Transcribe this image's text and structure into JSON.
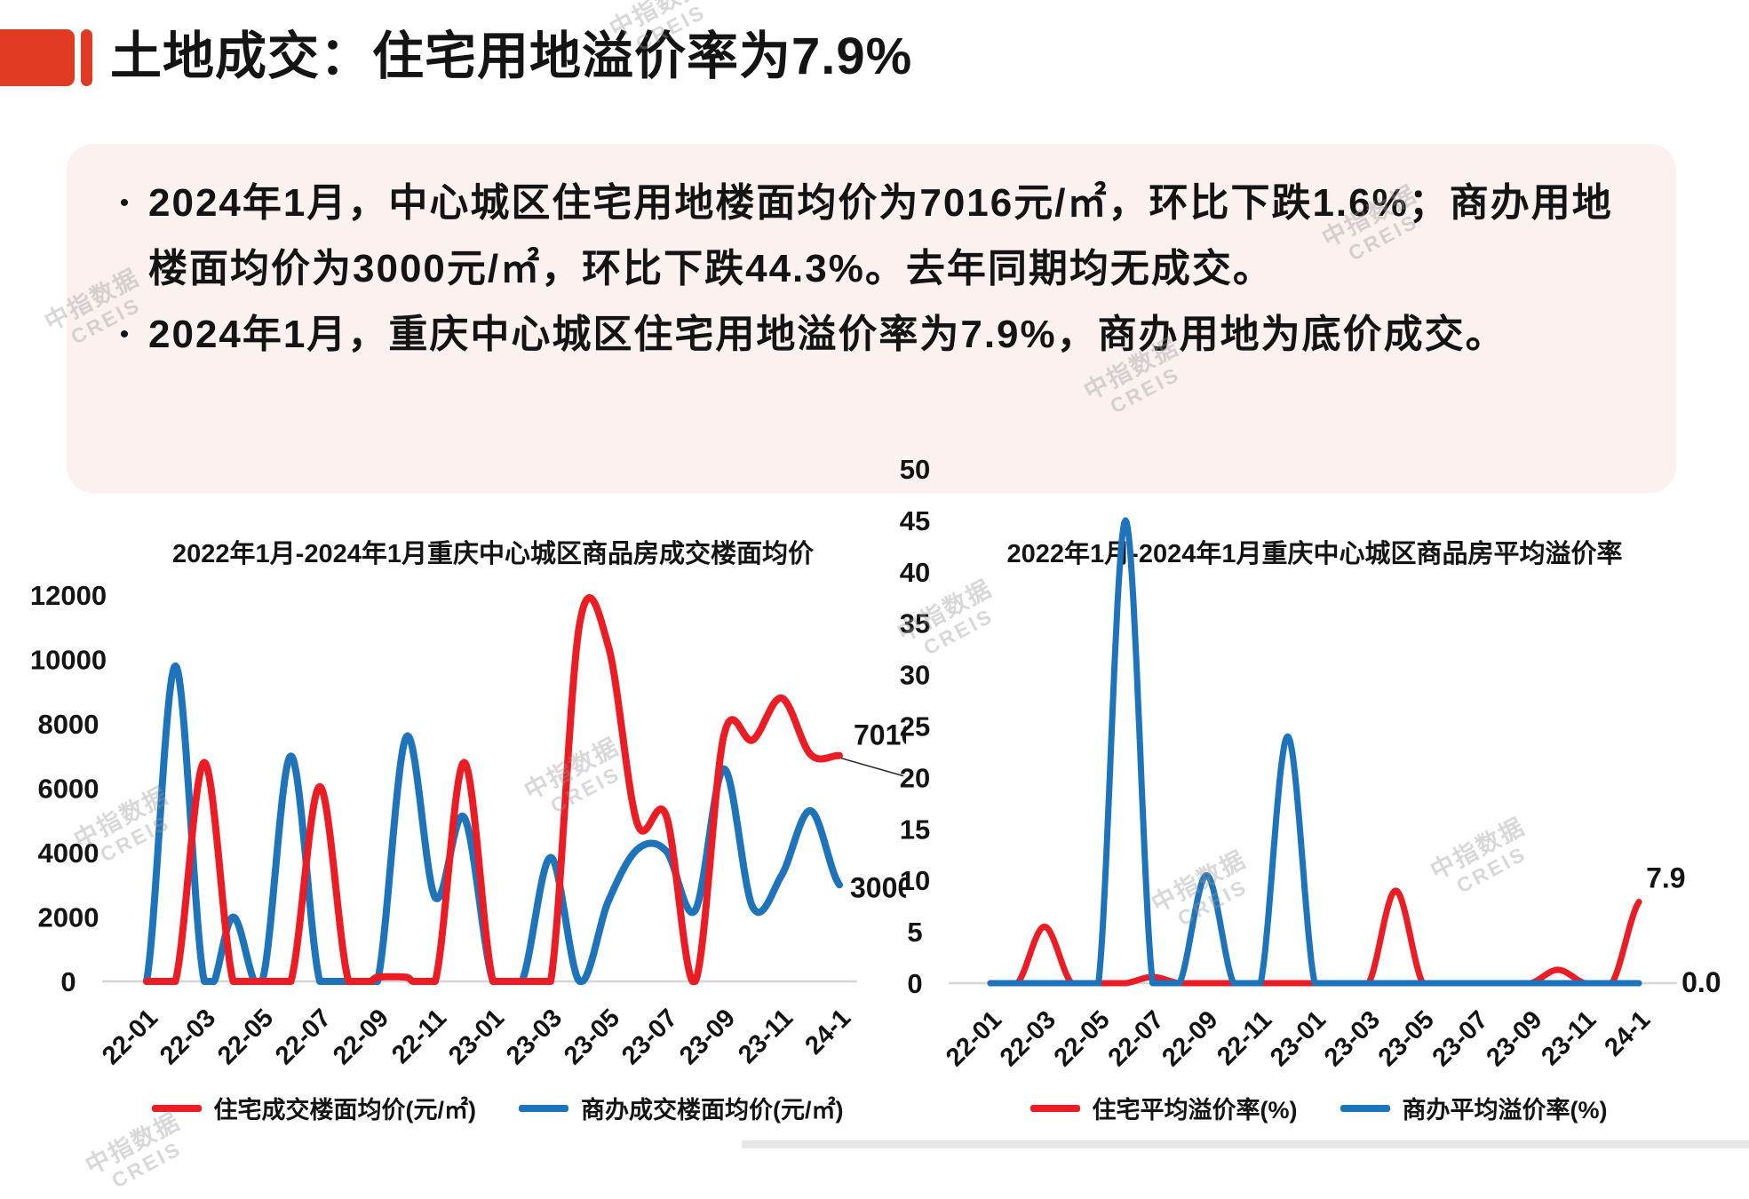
{
  "header": {
    "title": "土地成交：住宅用地溢价率为7.9%",
    "accent_color": "#E03A22"
  },
  "summary": {
    "bullets": [
      "2024年1月，中心城区住宅用地楼面均价为7016元/㎡，环比下跌1.6%；商办用地楼面均价为3000元/㎡，环比下跌44.3%。去年同期均无成交。",
      "2024年1月，重庆中心城区住宅用地溢价率为7.9%，商办用地为底价成交。"
    ]
  },
  "watermark": {
    "line1": "中指数据",
    "line2": "CREIS"
  },
  "chart_data": [
    {
      "type": "line",
      "title": "2022年1月-2024年1月重庆中心城区商品房成交楼面均价",
      "categories": [
        "22-01",
        "22-02",
        "22-03",
        "22-04",
        "22-05",
        "22-06",
        "22-07",
        "22-08",
        "22-09",
        "22-10",
        "22-11",
        "22-12",
        "23-01",
        "23-02",
        "23-03",
        "23-04",
        "23-05",
        "23-06",
        "23-07",
        "23-08",
        "23-09",
        "23-10",
        "23-11",
        "23-12",
        "24-1"
      ],
      "x_tick_labels": [
        "22-01",
        "22-03",
        "22-05",
        "22-07",
        "22-09",
        "22-11",
        "23-01",
        "23-03",
        "23-05",
        "23-07",
        "23-09",
        "23-11",
        "24-1"
      ],
      "series": [
        {
          "name": "住宅成交楼面均价(元/㎡)",
          "color": "#EB1C24",
          "values": [
            0,
            0,
            6800,
            0,
            0,
            0,
            6050,
            0,
            130,
            130,
            0,
            6800,
            0,
            0,
            0,
            11100,
            10400,
            4900,
            5150,
            0,
            7650,
            7500,
            8800,
            7050,
            7016
          ]
        },
        {
          "name": "商办成交楼面均价(元/㎡)",
          "color": "#1E74BB",
          "values": [
            0,
            9800,
            0,
            2000,
            0,
            7000,
            0,
            0,
            0,
            7600,
            2600,
            5100,
            0,
            0,
            3850,
            0,
            2500,
            4100,
            4050,
            2200,
            6600,
            2300,
            3300,
            5300,
            3000
          ]
        }
      ],
      "ylim": [
        0,
        12000
      ],
      "yticks": [
        0,
        2000,
        4000,
        6000,
        8000,
        10000,
        12000
      ],
      "grid": false,
      "legend_position": "bottom",
      "annotations": [
        {
          "text": "7016",
          "month": "24-1",
          "value": 7016
        },
        {
          "text": "3000",
          "month": "24-1",
          "value": 3000
        }
      ]
    },
    {
      "type": "line",
      "title": "2022年1月-2024年1月重庆中心城区商品房平均溢价率",
      "categories": [
        "22-01",
        "22-02",
        "22-03",
        "22-04",
        "22-05",
        "22-06",
        "22-07",
        "22-08",
        "22-09",
        "22-10",
        "22-11",
        "22-12",
        "23-01",
        "23-02",
        "23-03",
        "23-04",
        "23-05",
        "23-06",
        "23-07",
        "23-08",
        "23-09",
        "23-10",
        "23-11",
        "23-12",
        "24-1"
      ],
      "x_tick_labels": [
        "22-01",
        "22-03",
        "22-05",
        "22-07",
        "22-09",
        "22-11",
        "23-01",
        "23-03",
        "23-05",
        "23-07",
        "23-09",
        "23-11",
        "24-1"
      ],
      "series": [
        {
          "name": "住宅平均溢价率(%)",
          "color": "#EB1C24",
          "values": [
            0,
            0,
            5.5,
            0,
            0,
            0,
            0.6,
            0,
            0,
            0,
            0,
            0,
            0,
            0,
            0,
            9,
            0,
            0,
            0,
            0,
            0,
            1.3,
            0,
            0,
            7.9
          ]
        },
        {
          "name": "商办平均溢价率(%)",
          "color": "#1E74BB",
          "values": [
            0,
            0,
            0,
            0,
            0,
            45,
            0,
            0,
            10.5,
            0,
            0,
            24,
            0,
            0,
            0,
            0,
            0,
            0,
            0,
            0,
            0,
            0,
            0,
            0,
            0
          ]
        }
      ],
      "ylim": [
        0,
        50
      ],
      "yticks": [
        0,
        5,
        10,
        15,
        20,
        25,
        30,
        35,
        40,
        45,
        50
      ],
      "grid": false,
      "legend_position": "bottom",
      "annotations": [
        {
          "text": "7.9",
          "month": "24-1",
          "value": 7.9
        },
        {
          "text": "0.0",
          "month": "24-1",
          "value": 0
        }
      ]
    }
  ]
}
